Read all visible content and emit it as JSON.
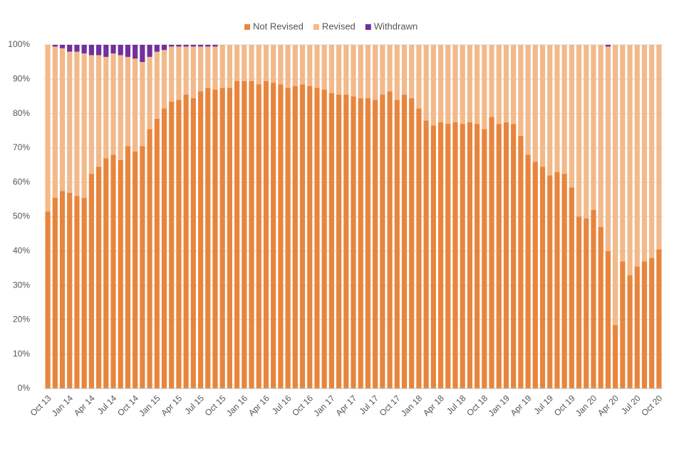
{
  "chart_data": {
    "type": "stacked-bar",
    "categories": [
      "Oct 13",
      null,
      null,
      "Jan 14",
      null,
      null,
      "Apr 14",
      null,
      null,
      "Jul 14",
      null,
      null,
      "Oct 14",
      null,
      null,
      "Jan 15",
      null,
      null,
      "Apr 15",
      null,
      null,
      "Jul 15",
      null,
      null,
      "Oct 15",
      null,
      null,
      "Jan 16",
      null,
      null,
      "Apr 16",
      null,
      null,
      "Jul 16",
      null,
      null,
      "Oct 16",
      null,
      null,
      "Jan 17",
      null,
      null,
      "Apr 17",
      null,
      null,
      "Jul 17",
      null,
      null,
      "Oct 17",
      null,
      null,
      "Jan 18",
      null,
      null,
      "Apr 18",
      null,
      null,
      "Jul 18",
      null,
      null,
      "Oct 18",
      null,
      null,
      "Jan 19",
      null,
      null,
      "Apr 19",
      null,
      null,
      "Jul 19",
      null,
      null,
      "Oct 19",
      null,
      null,
      "Jan 20",
      null,
      null,
      "Apr 20",
      null,
      null,
      "Jul 20",
      null,
      null,
      "Oct 20"
    ],
    "series": [
      {
        "name": "Not Revised",
        "color": "#e8853d",
        "values": [
          51.5,
          55.5,
          57.5,
          57,
          56,
          55.5,
          62.5,
          64.5,
          67,
          68,
          66.5,
          70.5,
          69,
          70.5,
          75.5,
          78.5,
          81.5,
          83.5,
          84,
          85.5,
          84.5,
          86.5,
          87.5,
          87,
          87.5,
          87.5,
          89.5,
          89.5,
          89.5,
          88.5,
          89.5,
          89,
          88.5,
          87.5,
          88,
          88.5,
          88,
          87.5,
          87,
          86,
          85.5,
          85.5,
          85,
          84.5,
          84.5,
          84,
          85.5,
          86.5,
          84,
          85.5,
          84.5,
          81.5,
          78,
          76.5,
          77.5,
          77,
          77.5,
          77,
          77.5,
          77,
          75.5,
          79,
          77,
          77.5,
          77,
          73.5,
          68,
          66,
          64.5,
          62,
          63,
          62.5,
          58.5,
          50,
          49.5,
          52,
          47,
          40,
          18.5,
          37,
          33,
          35.5,
          37,
          38,
          40.5
        ]
      },
      {
        "name": "Revised",
        "color": "#f2b98a",
        "values": [
          48.5,
          44,
          41.5,
          41,
          42,
          42,
          34.5,
          32.5,
          29.5,
          29.5,
          30.5,
          26,
          27,
          24.5,
          21,
          19.5,
          17,
          16,
          15.5,
          14,
          15,
          13,
          12,
          12.5,
          12.5,
          12.5,
          10.5,
          10.5,
          10.5,
          11.5,
          10.5,
          11,
          11.5,
          12.5,
          12,
          11.5,
          12,
          12.5,
          13,
          14,
          14.5,
          14.5,
          15,
          15.5,
          15.5,
          16,
          14.5,
          13.5,
          16,
          14.5,
          15.5,
          18.5,
          22,
          23.5,
          22.5,
          23,
          22.5,
          23,
          22.5,
          23,
          24.5,
          21,
          23,
          22.5,
          23,
          26.5,
          32,
          34,
          35.5,
          38,
          37,
          37.5,
          41.5,
          50,
          50.5,
          48,
          53,
          59.5,
          81.5,
          63,
          67,
          64.5,
          63,
          62,
          59.5
        ]
      },
      {
        "name": "Withdrawn",
        "color": "#7030a0",
        "values": [
          0,
          0.5,
          1,
          2,
          2,
          2.5,
          3,
          3,
          3.5,
          2.5,
          3,
          3.5,
          4,
          5,
          3.5,
          2,
          1.5,
          0.5,
          0.5,
          0.5,
          0.5,
          0.5,
          0.5,
          0.5,
          0,
          0,
          0,
          0,
          0,
          0,
          0,
          0,
          0,
          0,
          0,
          0,
          0,
          0,
          0,
          0,
          0,
          0,
          0,
          0,
          0,
          0,
          0,
          0,
          0,
          0,
          0,
          0,
          0,
          0,
          0,
          0,
          0,
          0,
          0,
          0,
          0,
          0,
          0,
          0,
          0,
          0,
          0,
          0,
          0,
          0,
          0,
          0,
          0,
          0,
          0,
          0,
          0,
          0.5,
          0,
          0,
          0,
          0,
          0,
          0,
          0
        ]
      }
    ],
    "ylim": [
      0,
      100
    ],
    "yticks": [
      {
        "value": 0,
        "label": "0%"
      },
      {
        "value": 10,
        "label": "10%"
      },
      {
        "value": 20,
        "label": "20%"
      },
      {
        "value": 30,
        "label": "30%"
      },
      {
        "value": 40,
        "label": "40%"
      },
      {
        "value": 50,
        "label": "50%"
      },
      {
        "value": 60,
        "label": "60%"
      },
      {
        "value": 70,
        "label": "70%"
      },
      {
        "value": 80,
        "label": "80%"
      },
      {
        "value": 90,
        "label": "90%"
      },
      {
        "value": 100,
        "label": "100%"
      }
    ],
    "grid": true,
    "legend": "top"
  }
}
